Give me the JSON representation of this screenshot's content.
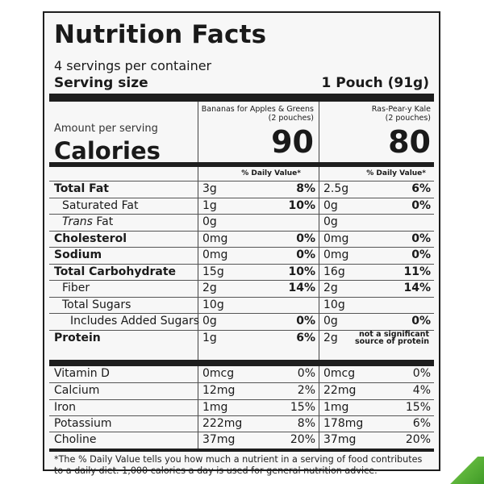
{
  "label": {
    "title": "Nutrition Facts",
    "servings": "4 servings per container",
    "serving_size_label": "Serving size",
    "serving_size_value": "1 Pouch (91g)",
    "amount_per_serving": "Amount per serving",
    "calories_label": "Calories",
    "products": [
      {
        "name_line1": "Bananas for Apples & Greens",
        "name_line2": "(2 pouches)",
        "calories": "90"
      },
      {
        "name_line1": "Ras-Pear-y Kale",
        "name_line2": "(2 pouches)",
        "calories": "80"
      }
    ],
    "dv_header": "% Daily Value*",
    "nutrients": [
      {
        "name": "Total Fat",
        "a1": "3g",
        "p1": "8%",
        "a2": "2.5g",
        "p2": "6%"
      },
      {
        "name": "Saturated Fat",
        "a1": "1g",
        "p1": "10%",
        "a2": "0g",
        "p2": "0%"
      },
      {
        "name_italic": "Trans",
        "name_rest": " Fat",
        "a1": "0g",
        "p1": "",
        "a2": "0g",
        "p2": ""
      },
      {
        "name": "Cholesterol",
        "a1": "0mg",
        "p1": "0%",
        "a2": "0mg",
        "p2": "0%"
      },
      {
        "name": "Sodium",
        "a1": "0mg",
        "p1": "0%",
        "a2": "0mg",
        "p2": "0%"
      },
      {
        "name": "Total Carbohydrate",
        "a1": "15g",
        "p1": "10%",
        "a2": "16g",
        "p2": "11%"
      },
      {
        "name": "Fiber",
        "a1": "2g",
        "p1": "14%",
        "a2": "2g",
        "p2": "14%"
      },
      {
        "name": "Total Sugars",
        "a1": "10g",
        "p1": "",
        "a2": "10g",
        "p2": ""
      },
      {
        "name": "Includes Added Sugars",
        "a1": "0g",
        "p1": "0%",
        "a2": "0g",
        "p2": "0%"
      },
      {
        "name": "Protein",
        "a1": "1g",
        "p1": "6%",
        "a2": "2g",
        "note_line1": "not a significant",
        "note_line2": "source of protein"
      }
    ],
    "vitamins": [
      {
        "name": "Vitamin D",
        "a1": "0mcg",
        "p1": "0%",
        "a2": "0mcg",
        "p2": "0%"
      },
      {
        "name": "Calcium",
        "a1": "12mg",
        "p1": "2%",
        "a2": "22mg",
        "p2": "4%"
      },
      {
        "name": "Iron",
        "a1": "1mg",
        "p1": "15%",
        "a2": "1mg",
        "p2": "15%"
      },
      {
        "name": "Potassium",
        "a1": "222mg",
        "p1": "8%",
        "a2": "178mg",
        "p2": "6%"
      },
      {
        "name": "Choline",
        "a1": "37mg",
        "p1": "20%",
        "a2": "37mg",
        "p2": "20%"
      }
    ],
    "footnote": "*The % Daily Value tells you how much a nutrient in a serving of food contributes to a daily diet. 1,000 calories a day is used for general nutrition advice."
  },
  "colors": {
    "ink": "#1e1e1e",
    "panel_background": "#f7f7f7",
    "accent_green": "#4fa832"
  }
}
